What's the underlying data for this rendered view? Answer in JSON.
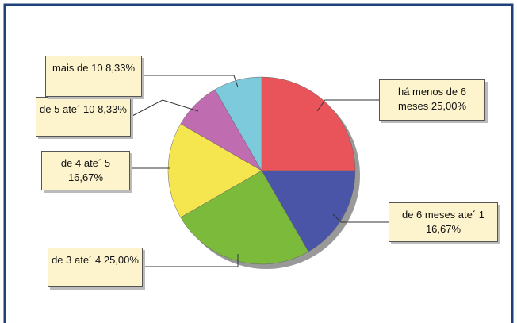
{
  "chart_data": {
    "type": "pie",
    "categories": [
      "há menos de 6 meses",
      "de 6 meses ate´ 1",
      "de 3 ate´ 4",
      "de 4 ate´ 5",
      "de 5 ate´ 10",
      "mais de 10"
    ],
    "values": [
      25,
      16.67,
      25,
      16.67,
      8.33,
      8.33
    ],
    "value_labels": [
      "25,00%",
      "16,67%",
      "25,00%",
      "16,67%",
      "8,33%",
      "8,33%"
    ],
    "colors": [
      "#e8545a",
      "#4a55a8",
      "#7cba3c",
      "#f5e650",
      "#c06cb0",
      "#7ccadc"
    ]
  }
}
